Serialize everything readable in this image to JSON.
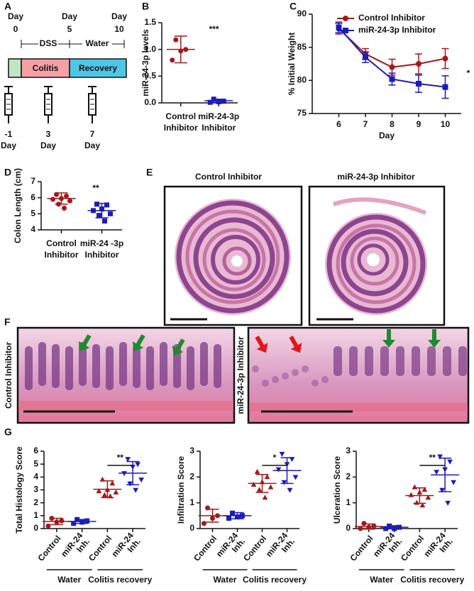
{
  "panel_labels": [
    "A",
    "B",
    "C",
    "D",
    "E",
    "F",
    "G"
  ],
  "timeline": {
    "days_top": [
      [
        "Day",
        "0"
      ],
      [
        "Day",
        "5"
      ],
      [
        "Day",
        "10"
      ]
    ],
    "phases": [
      "DSS",
      "Water"
    ],
    "stages": [
      "Colitis",
      "Recovery"
    ],
    "injections": [
      [
        "-1",
        "Day"
      ],
      [
        "3",
        "Day"
      ],
      [
        "7",
        "Day"
      ]
    ]
  },
  "histology_e": {
    "titles": [
      "Control Inhibitor",
      "miR-24-3p Inhibitor"
    ]
  },
  "histology_f": {
    "labels": [
      "Control Inhibitor",
      "miR-24-3p Inhibitor"
    ]
  },
  "chart_data": [
    {
      "type": "dotplot",
      "ylabel": "miR-24-3p levels",
      "categories": [
        [
          "Control",
          "Inhibitor"
        ],
        [
          "miR-24-3p",
          "Inhibitor"
        ]
      ],
      "colors": [
        "#a3191b",
        "#1c1cb8"
      ],
      "markers": [
        "circle",
        "square"
      ],
      "values": [
        [
          1.18,
          1.0,
          0.97,
          0.8
        ],
        [
          0.07,
          0.03,
          0.02,
          0.01
        ]
      ],
      "means": [
        1.0,
        0.04
      ],
      "sds": [
        0.25,
        0.03
      ],
      "ylim": [
        0,
        1.5
      ],
      "yticks": [
        {
          "value": 0,
          "label": "0.0"
        },
        {
          "value": 0.5,
          "label": "0.5"
        },
        {
          "value": 1,
          "label": "1.0"
        },
        {
          "value": 1.5,
          "label": "1.5"
        }
      ],
      "annotation": "***"
    },
    {
      "type": "line",
      "ylabel": "% Initial Weight",
      "xlabel": "Day",
      "x": [
        6,
        7,
        8,
        9,
        10
      ],
      "xlim": [
        5,
        10.6
      ],
      "xticks": [
        6,
        7,
        8,
        9,
        10
      ],
      "ylim": [
        75,
        90
      ],
      "yticks": [
        75,
        80,
        85,
        90
      ],
      "legend": "upper right",
      "series": [
        {
          "name": "Control Inhibitor",
          "color": "#a3191b",
          "marker": "circle",
          "values": [
            87.8,
            84,
            82,
            82.5,
            83.3
          ],
          "errors": [
            0.8,
            0.8,
            1.2,
            1.5,
            1.5
          ]
        },
        {
          "name": "miR-24-3p Inhibitor",
          "color": "#1c1cb8",
          "marker": "square",
          "values": [
            88,
            83.5,
            80.2,
            79.5,
            79
          ],
          "errors": [
            0.8,
            0.8,
            0.9,
            1.3,
            1.7
          ]
        }
      ],
      "annotation": "*"
    },
    {
      "type": "dotplot",
      "ylabel": "Colon Length (cm)",
      "categories": [
        [
          "Control",
          "Inhibitor"
        ],
        [
          "miR-24 -3p",
          "Inhibitor"
        ]
      ],
      "colors": [
        "#a3191b",
        "#1c1cb8"
      ],
      "markers": [
        "circle",
        "square"
      ],
      "values": [
        [
          6.2,
          6.1,
          5.95,
          5.9,
          5.8,
          5.6,
          5.35
        ],
        [
          5.6,
          5.55,
          5.3,
          5.2,
          5.0,
          4.9,
          4.55
        ]
      ],
      "means": [
        5.95,
        5.2
      ],
      "sds": [
        0.35,
        0.45
      ],
      "ylim": [
        4,
        7
      ],
      "yticks": [
        4,
        5,
        6,
        7
      ],
      "annotation": "**"
    },
    {
      "type": "dotplot",
      "ylabel": "Total Histology Score",
      "categories": [
        [
          "Control"
        ],
        [
          "miR-24",
          "Inh."
        ],
        [
          "Control"
        ],
        [
          "miR-24",
          "Inh."
        ]
      ],
      "group_labels": [
        "Water",
        "Colitis recovery"
      ],
      "colors": [
        "#a3191b",
        "#1c1cb8",
        "#a3191b",
        "#1c1cb8"
      ],
      "markers": [
        "circle",
        "square",
        "triangle-up",
        "triangle-down"
      ],
      "values": [
        [
          0.8,
          0.6,
          0.5,
          0.2
        ],
        [
          0.7,
          0.6,
          0.5,
          0.4
        ],
        [
          3.8,
          3.5,
          3.0,
          2.9,
          2.8,
          2.6,
          2.5
        ],
        [
          5.4,
          5.0,
          4.8,
          4.3,
          3.8,
          3.5,
          3.0
        ]
      ],
      "means": [
        0.55,
        0.55,
        3.05,
        4.3
      ],
      "sds": [
        0.25,
        0.15,
        0.65,
        0.9
      ],
      "ylim": [
        0,
        6
      ],
      "yticks": [
        0,
        1,
        2,
        3,
        4,
        5,
        6
      ],
      "annotation": "**"
    },
    {
      "type": "dotplot",
      "ylabel": "Infiltration Score",
      "categories": [
        [
          "Control"
        ],
        [
          "miR-24",
          "Inh."
        ],
        [
          "Control"
        ],
        [
          "miR-24",
          "Inh."
        ]
      ],
      "group_labels": [
        "Water",
        "Colitis recovery"
      ],
      "colors": [
        "#a3191b",
        "#1c1cb8",
        "#a3191b",
        "#1c1cb8"
      ],
      "markers": [
        "circle",
        "square",
        "triangle-up",
        "triangle-down"
      ],
      "values": [
        [
          0.8,
          0.5,
          0.4,
          0.2
        ],
        [
          0.6,
          0.5,
          0.45,
          0.4
        ],
        [
          2.2,
          2.0,
          1.8,
          1.7,
          1.6,
          1.5,
          1.2
        ],
        [
          2.9,
          2.7,
          2.5,
          2.3,
          2.0,
          1.8,
          1.5
        ]
      ],
      "means": [
        0.5,
        0.5,
        1.75,
        2.25
      ],
      "sds": [
        0.25,
        0.12,
        0.35,
        0.5
      ],
      "ylim": [
        0,
        3
      ],
      "yticks": [
        0,
        1,
        2,
        3
      ],
      "annotation": "*"
    },
    {
      "type": "dotplot",
      "ylabel": "Ulceration Score",
      "categories": [
        [
          "Control"
        ],
        [
          "miR-24",
          "Inh."
        ],
        [
          "Control"
        ],
        [
          "miR-24",
          "Inh."
        ]
      ],
      "group_labels": [
        "Water",
        "Colitis recovery"
      ],
      "colors": [
        "#a3191b",
        "#1c1cb8",
        "#a3191b",
        "#1c1cb8"
      ],
      "markers": [
        "circle",
        "square",
        "triangle-up",
        "triangle-down"
      ],
      "values": [
        [
          0.2,
          0.1,
          0.05,
          0.0
        ],
        [
          0.1,
          0.05,
          0.0,
          0.0
        ],
        [
          1.6,
          1.5,
          1.4,
          1.3,
          1.2,
          1.0,
          0.9
        ],
        [
          2.8,
          2.6,
          2.3,
          2.2,
          1.8,
          1.5,
          1.0
        ]
      ],
      "means": [
        0.08,
        0.05,
        1.28,
        2.08
      ],
      "sds": [
        0.1,
        0.06,
        0.3,
        0.65
      ],
      "ylim": [
        0,
        3
      ],
      "yticks": [
        0,
        1,
        2,
        3
      ],
      "annotation": "**"
    }
  ]
}
